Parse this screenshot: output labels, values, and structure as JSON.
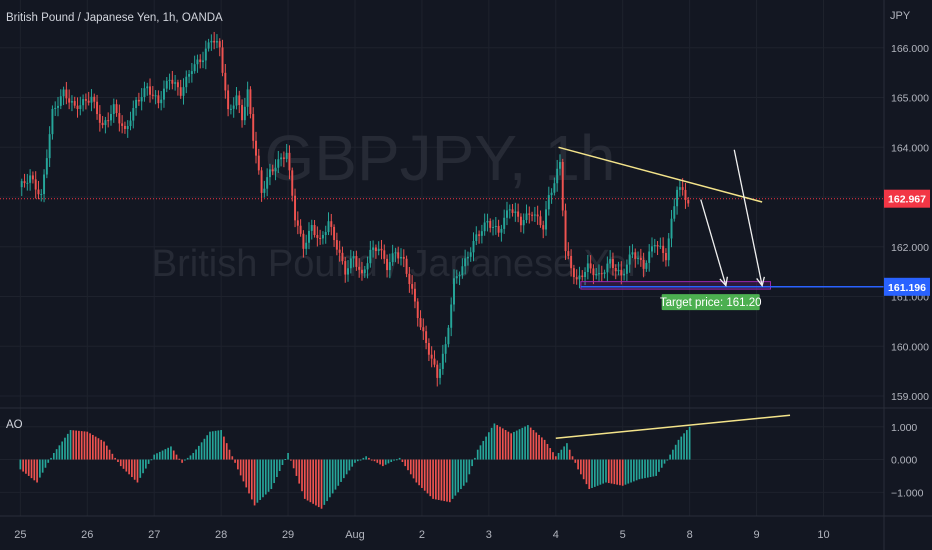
{
  "header": {
    "symbol_title": "British Pound / Japanese Yen, 1h, OANDA",
    "currency_label": "JPY"
  },
  "watermark": {
    "ticker": "GBPJPY, 1h",
    "description": "British Pound / Japanese Yen"
  },
  "colors": {
    "background": "#131722",
    "up": "#26a69a",
    "down": "#ef5350",
    "trendline": "#f3e38a",
    "arrow": "#f0f0f0",
    "target_line": "#2962ff",
    "target_box": "#9c27b0",
    "target_label_bg": "#4caf50",
    "current_price_bg": "#f23645"
  },
  "chart_data": [
    {
      "type": "candlestick",
      "title": "British Pound / Japanese Yen, 1h, OANDA",
      "y_unit": "JPY",
      "ylim": [
        158.8,
        166.8
      ],
      "y_ticks": [
        159,
        160,
        161,
        162,
        163,
        164,
        165,
        166
      ],
      "y_tick_labels": [
        "159.000",
        "160.000",
        "161.000",
        "162.000",
        "163.000",
        "164.000",
        "165.000",
        "166.000"
      ],
      "x_ticks": [
        {
          "label": "25",
          "t": 0
        },
        {
          "label": "26",
          "t": 24
        },
        {
          "label": "27",
          "t": 48
        },
        {
          "label": "28",
          "t": 72
        },
        {
          "label": "29",
          "t": 96
        },
        {
          "label": "Aug",
          "t": 120
        },
        {
          "label": "2",
          "t": 144
        },
        {
          "label": "3",
          "t": 168
        },
        {
          "label": "4",
          "t": 192
        },
        {
          "label": "5",
          "t": 216
        },
        {
          "label": "8",
          "t": 240
        },
        {
          "label": "9",
          "t": 264
        },
        {
          "label": "10",
          "t": 288
        }
      ],
      "path": [
        [
          0,
          163.2
        ],
        [
          4,
          163.4
        ],
        [
          8,
          163.0
        ],
        [
          12,
          164.7
        ],
        [
          16,
          165.1
        ],
        [
          20,
          164.8
        ],
        [
          26,
          165.0
        ],
        [
          30,
          164.4
        ],
        [
          34,
          164.8
        ],
        [
          38,
          164.3
        ],
        [
          42,
          164.9
        ],
        [
          46,
          165.2
        ],
        [
          50,
          164.9
        ],
        [
          54,
          165.4
        ],
        [
          58,
          165.1
        ],
        [
          62,
          165.6
        ],
        [
          66,
          165.8
        ],
        [
          69,
          166.2
        ],
        [
          72,
          166.0
        ],
        [
          75,
          164.7
        ],
        [
          78,
          165.0
        ],
        [
          80,
          164.6
        ],
        [
          82,
          165.1
        ],
        [
          84,
          164.2
        ],
        [
          87,
          163.1
        ],
        [
          90,
          163.5
        ],
        [
          93,
          163.7
        ],
        [
          96,
          163.9
        ],
        [
          99,
          162.6
        ],
        [
          102,
          162.0
        ],
        [
          105,
          162.4
        ],
        [
          108,
          162.1
        ],
        [
          111,
          162.5
        ],
        [
          114,
          162.0
        ],
        [
          117,
          161.5
        ],
        [
          120,
          161.8
        ],
        [
          123,
          161.4
        ],
        [
          126,
          161.9
        ],
        [
          129,
          162.0
        ],
        [
          132,
          161.6
        ],
        [
          135,
          161.9
        ],
        [
          138,
          161.7
        ],
        [
          141,
          161.1
        ],
        [
          144,
          160.4
        ],
        [
          147,
          159.9
        ],
        [
          150,
          159.4
        ],
        [
          153,
          160.0
        ],
        [
          156,
          161.3
        ],
        [
          160,
          161.7
        ],
        [
          164,
          162.2
        ],
        [
          168,
          162.5
        ],
        [
          172,
          162.3
        ],
        [
          176,
          162.8
        ],
        [
          180,
          162.5
        ],
        [
          184,
          162.7
        ],
        [
          188,
          162.4
        ],
        [
          190,
          163.0
        ],
        [
          192,
          163.3
        ],
        [
          194,
          163.7
        ],
        [
          196,
          161.9
        ],
        [
          200,
          161.3
        ],
        [
          204,
          161.6
        ],
        [
          208,
          161.4
        ],
        [
          212,
          161.7
        ],
        [
          216,
          161.4
        ],
        [
          220,
          161.9
        ],
        [
          224,
          161.6
        ],
        [
          228,
          162.1
        ],
        [
          232,
          161.8
        ],
        [
          236,
          163.2
        ],
        [
          238,
          163.1
        ],
        [
          240,
          162.9
        ]
      ],
      "annotations": {
        "target_price_label": "Target price: 161.20",
        "current_price": 162.967,
        "current_price_label": "162.967",
        "target_line_price": 161.196,
        "target_line_label": "161.196",
        "target_box": {
          "t0": 201,
          "t1": 269,
          "price_top": 161.3,
          "price_bottom": 161.15
        },
        "resistance_line": {
          "t0": 193,
          "p0": 164.0,
          "t1": 266,
          "p1": 162.9
        },
        "arrows": [
          {
            "t0": 244,
            "p0": 162.95,
            "t1": 253,
            "p1": 161.22
          },
          {
            "t0": 256,
            "p0": 163.95,
            "t1": 266,
            "p1": 161.22
          }
        ]
      }
    },
    {
      "type": "histogram",
      "title": "AO",
      "ylim": [
        -1.6,
        1.45
      ],
      "y_ticks": [
        -1,
        0,
        1
      ],
      "y_tick_labels": [
        "−1.000",
        "0.000",
        "1.000"
      ],
      "path": [
        [
          0,
          -0.3
        ],
        [
          6,
          -0.7
        ],
        [
          12,
          0.2
        ],
        [
          18,
          0.9
        ],
        [
          24,
          0.85
        ],
        [
          30,
          0.55
        ],
        [
          36,
          -0.2
        ],
        [
          42,
          -0.7
        ],
        [
          48,
          0.15
        ],
        [
          54,
          0.4
        ],
        [
          58,
          -0.1
        ],
        [
          62,
          0.2
        ],
        [
          68,
          0.85
        ],
        [
          72,
          0.9
        ],
        [
          78,
          -0.3
        ],
        [
          84,
          -1.4
        ],
        [
          90,
          -0.9
        ],
        [
          96,
          0.2
        ],
        [
          102,
          -1.2
        ],
        [
          108,
          -1.5
        ],
        [
          114,
          -0.8
        ],
        [
          120,
          -0.1
        ],
        [
          124,
          0.1
        ],
        [
          130,
          -0.2
        ],
        [
          136,
          0.05
        ],
        [
          142,
          -0.7
        ],
        [
          148,
          -1.2
        ],
        [
          154,
          -1.3
        ],
        [
          160,
          -0.7
        ],
        [
          164,
          0.3
        ],
        [
          170,
          1.1
        ],
        [
          176,
          0.8
        ],
        [
          182,
          1.05
        ],
        [
          188,
          0.6
        ],
        [
          192,
          0.1
        ],
        [
          196,
          0.5
        ],
        [
          200,
          -0.3
        ],
        [
          204,
          -0.9
        ],
        [
          210,
          -0.7
        ],
        [
          216,
          -0.8
        ],
        [
          222,
          -0.6
        ],
        [
          228,
          -0.5
        ],
        [
          232,
          0.0
        ],
        [
          236,
          0.6
        ],
        [
          240,
          1.0
        ]
      ],
      "divergence_line": {
        "t0": 192,
        "v0": 0.65,
        "t1": 276,
        "v1": 1.35
      }
    }
  ]
}
